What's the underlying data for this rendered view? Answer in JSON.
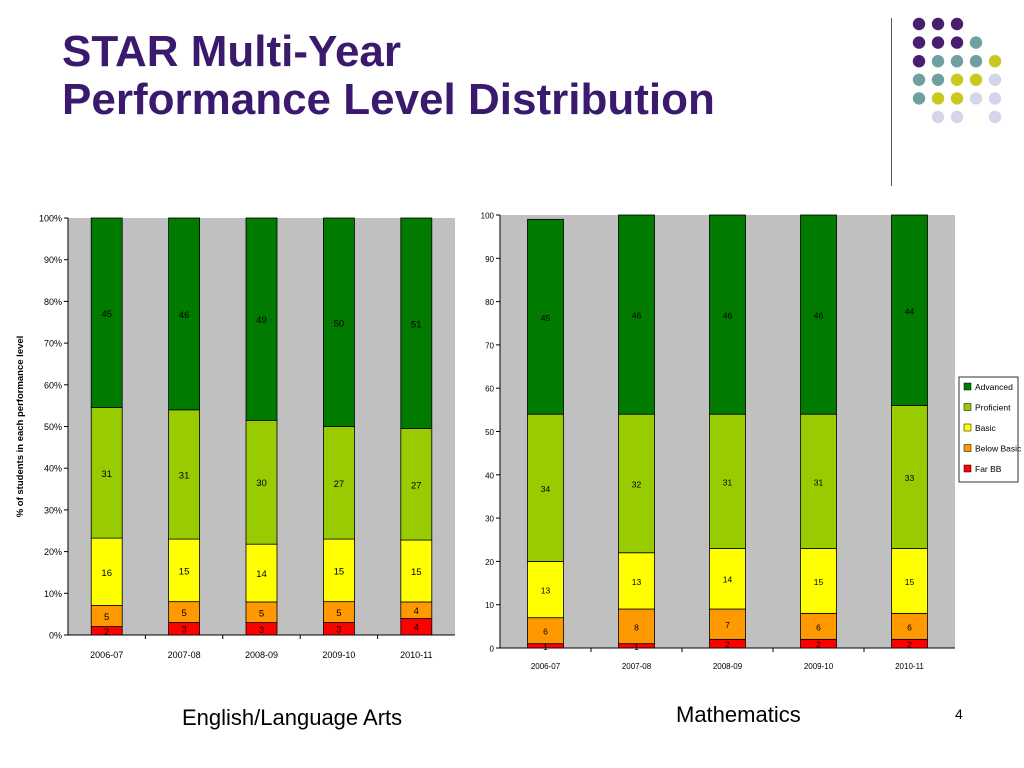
{
  "slide": {
    "title_line1": "STAR Multi-Year",
    "title_line2": "Performance Level Distribution",
    "caption_left": "English/Language Arts",
    "caption_right": "Mathematics",
    "page_number": "4"
  },
  "colors": {
    "title": "#3b1a6e",
    "plot_bg": "#c0c0c0",
    "Advanced": "#007b00",
    "Proficient": "#99cc00",
    "Basic": "#ffff00",
    "Below Basic": "#ff9900",
    "Far BB": "#ff0000",
    "dot_purple": "#4a1e6e",
    "dot_teal": "#6f9fa0",
    "dot_olive": "#c8c81e",
    "dot_lavender": "#d4d4ea"
  },
  "chart_data": [
    {
      "type": "bar",
      "stacked": true,
      "title": "",
      "xlabel": "",
      "ylabel": "% of students in each performance level",
      "ylim": [
        0,
        100
      ],
      "yticks": [
        "0%",
        "10%",
        "20%",
        "30%",
        "40%",
        "50%",
        "60%",
        "70%",
        "80%",
        "90%",
        "100%"
      ],
      "normalized": true,
      "grid": false,
      "legend": "none",
      "categories": [
        "2006-07",
        "2007-08",
        "2008-09",
        "2009-10",
        "2010-11"
      ],
      "series": [
        {
          "name": "Far BB",
          "values": [
            2,
            3,
            3,
            3,
            4
          ]
        },
        {
          "name": "Below Basic",
          "values": [
            5,
            5,
            5,
            5,
            4
          ]
        },
        {
          "name": "Basic",
          "values": [
            16,
            15,
            14,
            15,
            15
          ]
        },
        {
          "name": "Proficient",
          "values": [
            31,
            31,
            30,
            27,
            27
          ]
        },
        {
          "name": "Advanced",
          "values": [
            45,
            46,
            49,
            50,
            51
          ]
        }
      ]
    },
    {
      "type": "bar",
      "stacked": true,
      "title": "",
      "xlabel": "",
      "ylabel": "",
      "ylim": [
        0,
        100
      ],
      "yticks": [
        "0",
        "10",
        "20",
        "30",
        "40",
        "50",
        "60",
        "70",
        "80",
        "90",
        "100"
      ],
      "normalized": false,
      "grid": false,
      "legend": "right",
      "legend_order": [
        "Advanced",
        "Proficient",
        "Basic",
        "Below Basic",
        "Far BB"
      ],
      "categories": [
        "2006-07",
        "2007-08",
        "2008-09",
        "2009-10",
        "2010-11"
      ],
      "series": [
        {
          "name": "Far BB",
          "values": [
            1,
            1,
            2,
            2,
            2
          ]
        },
        {
          "name": "Below Basic",
          "values": [
            6,
            8,
            7,
            6,
            6
          ]
        },
        {
          "name": "Basic",
          "values": [
            13,
            13,
            14,
            15,
            15
          ]
        },
        {
          "name": "Proficient",
          "values": [
            34,
            32,
            31,
            31,
            33
          ]
        },
        {
          "name": "Advanced",
          "values": [
            45,
            46,
            46,
            46,
            44
          ]
        }
      ]
    }
  ]
}
